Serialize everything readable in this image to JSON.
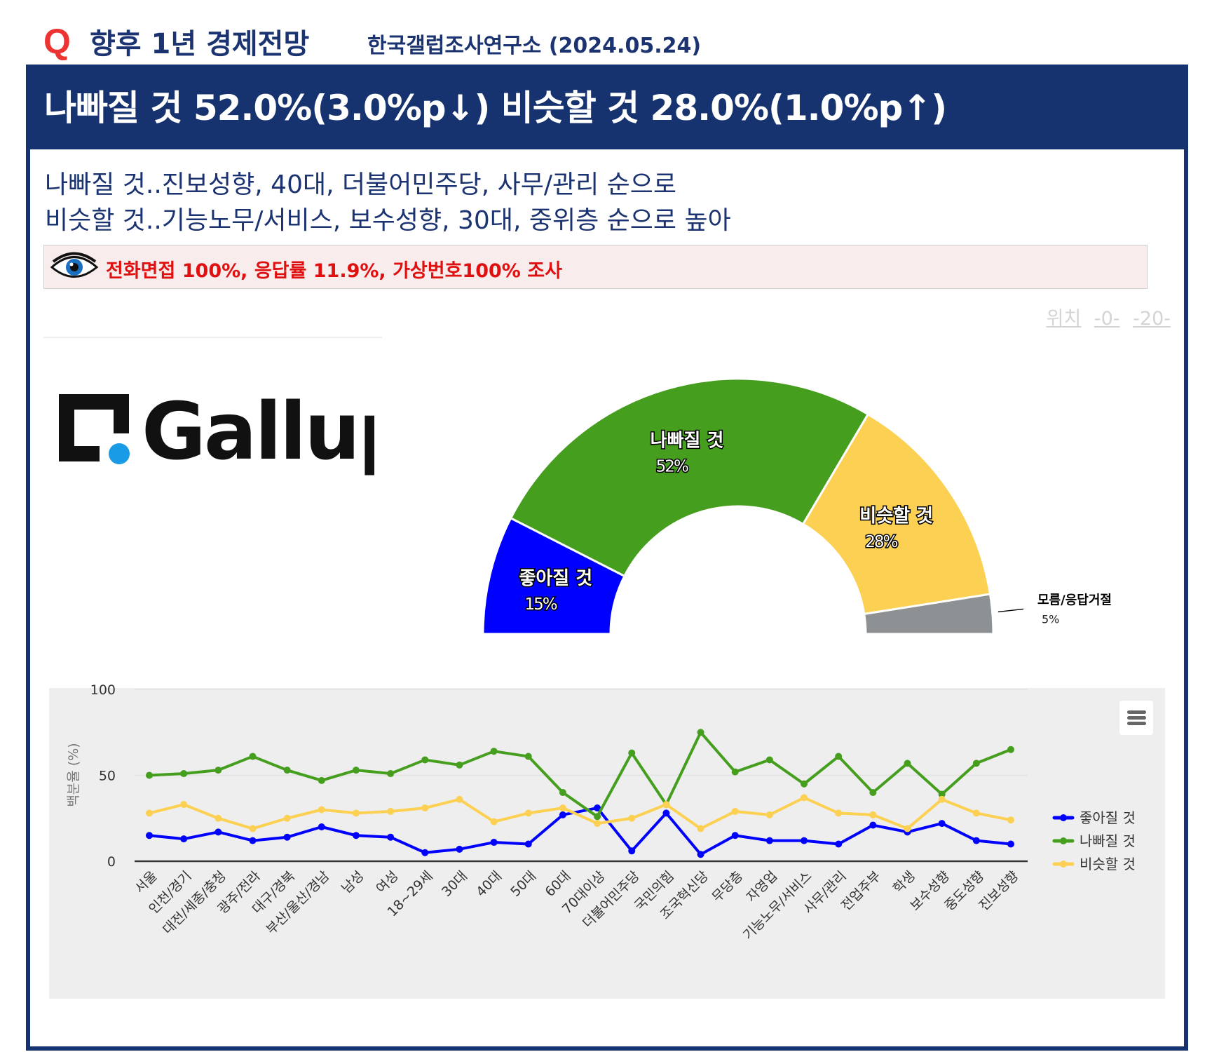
{
  "header": {
    "q_mark": "Q",
    "title": "향후 1년 경제전망",
    "source": "한국갤럽조사연구소 (2024.05.24)"
  },
  "headline": "나빠질 것 52.0%(3.0%p↓) 비슷할 것 28.0%(1.0%p↑)",
  "subtitles": [
    "나빠질 것..진보성향, 40대, 더불어민주당, 사무/관리 순으로",
    "비슷할 것..기능노무/서비스, 보수성향, 30대, 중위층 순으로 높아"
  ],
  "notice": "전화면접 100%, 응답률 11.9%, 가상번호100% 조사",
  "position_links": {
    "label": "위치",
    "link1": "-0-",
    "link2": "-20-"
  },
  "logo_text": "Gallup",
  "colors": {
    "navy": "#17336f",
    "good": "#0000ff",
    "bad": "#469e1f",
    "same": "#fcd052",
    "unknown": "#8e9193"
  },
  "chart_data": [
    {
      "type": "pie",
      "variant": "semi-donut",
      "slices": [
        {
          "label": "좋아질 것",
          "value": 15,
          "display": "15%",
          "color": "#0000ff"
        },
        {
          "label": "나빠질 것",
          "value": 52,
          "display": "52%",
          "color": "#469e1f"
        },
        {
          "label": "비슷할 것",
          "value": 28,
          "display": "28%",
          "color": "#fcd052"
        },
        {
          "label": "모름/응답거절",
          "value": 5,
          "display": "5%",
          "color": "#8e9193"
        }
      ]
    },
    {
      "type": "line",
      "ylabel": "백분율 (%)",
      "ylim": [
        0,
        100
      ],
      "yticks": [
        "0",
        "50",
        "100"
      ],
      "legend": "right",
      "categories": [
        "서울",
        "인천/경기",
        "대전/세종/충청",
        "광주/전라",
        "대구/경북",
        "부산/울산/경남",
        "남성",
        "여성",
        "18~29세",
        "30대",
        "40대",
        "50대",
        "60대",
        "70대이상",
        "더불어민주당",
        "국민의힘",
        "조국혁신당",
        "무당층",
        "자영업",
        "기능노무/서비스",
        "사무/관리",
        "전업주부",
        "학생",
        "보수성향",
        "중도성향",
        "진보성향"
      ],
      "series": [
        {
          "name": "좋아질 것",
          "color": "#0000ff",
          "values": [
            15,
            13,
            17,
            12,
            14,
            20,
            15,
            14,
            5,
            7,
            11,
            10,
            27,
            31,
            6,
            28,
            4,
            15,
            12,
            12,
            10,
            21,
            17,
            22,
            12,
            10
          ]
        },
        {
          "name": "나빠질 것",
          "color": "#469e1f",
          "values": [
            50,
            51,
            53,
            61,
            53,
            47,
            53,
            51,
            59,
            56,
            64,
            61,
            40,
            26,
            63,
            33,
            75,
            52,
            59,
            45,
            61,
            40,
            57,
            39,
            57,
            65
          ]
        },
        {
          "name": "비슷할 것",
          "color": "#fcd052",
          "values": [
            28,
            33,
            25,
            19,
            25,
            30,
            28,
            29,
            31,
            36,
            23,
            28,
            31,
            22,
            25,
            33,
            19,
            29,
            27,
            37,
            28,
            27,
            19,
            36,
            28,
            24
          ]
        }
      ]
    }
  ]
}
